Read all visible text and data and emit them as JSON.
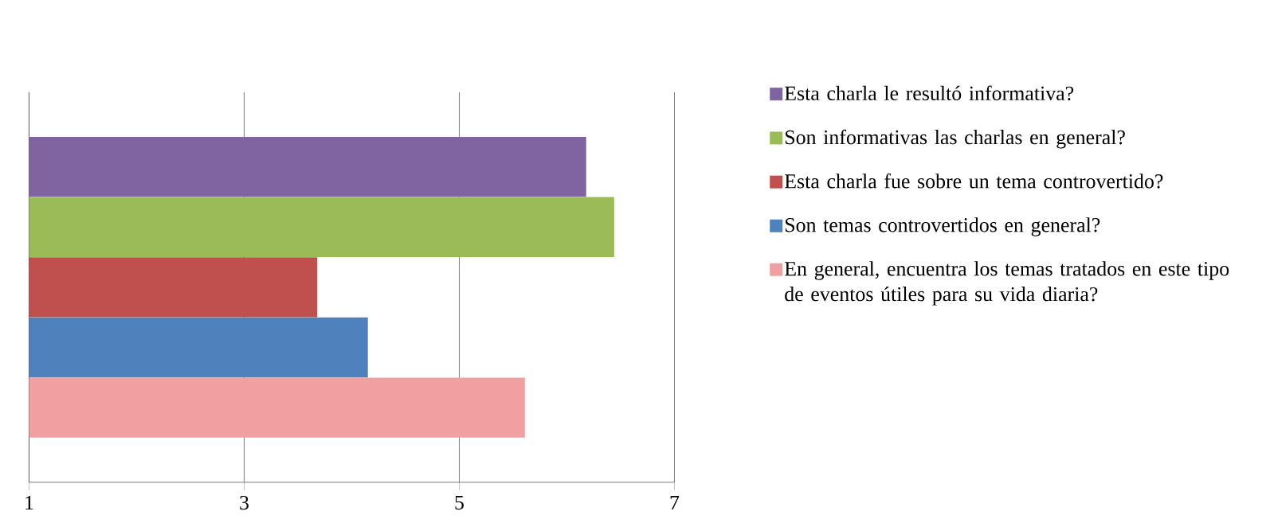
{
  "chart_data": {
    "type": "bar",
    "orientation": "horizontal",
    "categories": [
      null
    ],
    "series": [
      {
        "name": "Esta charla le resultó informativa?",
        "color": "#8064a2",
        "values": [
          6.18
        ]
      },
      {
        "name": "Son informativas las charlas en general?",
        "color": "#9bbb59",
        "values": [
          6.44
        ]
      },
      {
        "name": "Esta charla fue sobre un tema controvertido?",
        "color": "#c0504d",
        "values": [
          3.68
        ]
      },
      {
        "name": "Son temas controvertidos en general?",
        "color": "#4f81bd",
        "values": [
          4.15
        ]
      },
      {
        "name": "En general, encuentra los temas tratados en este tipo de eventos útiles para su vida diaria?",
        "color": "#f0a0a0",
        "values": [
          5.61
        ]
      }
    ],
    "xlim": [
      1,
      7
    ],
    "xticks": [
      1,
      3,
      5,
      7
    ],
    "grid": "x",
    "legend": "right"
  }
}
